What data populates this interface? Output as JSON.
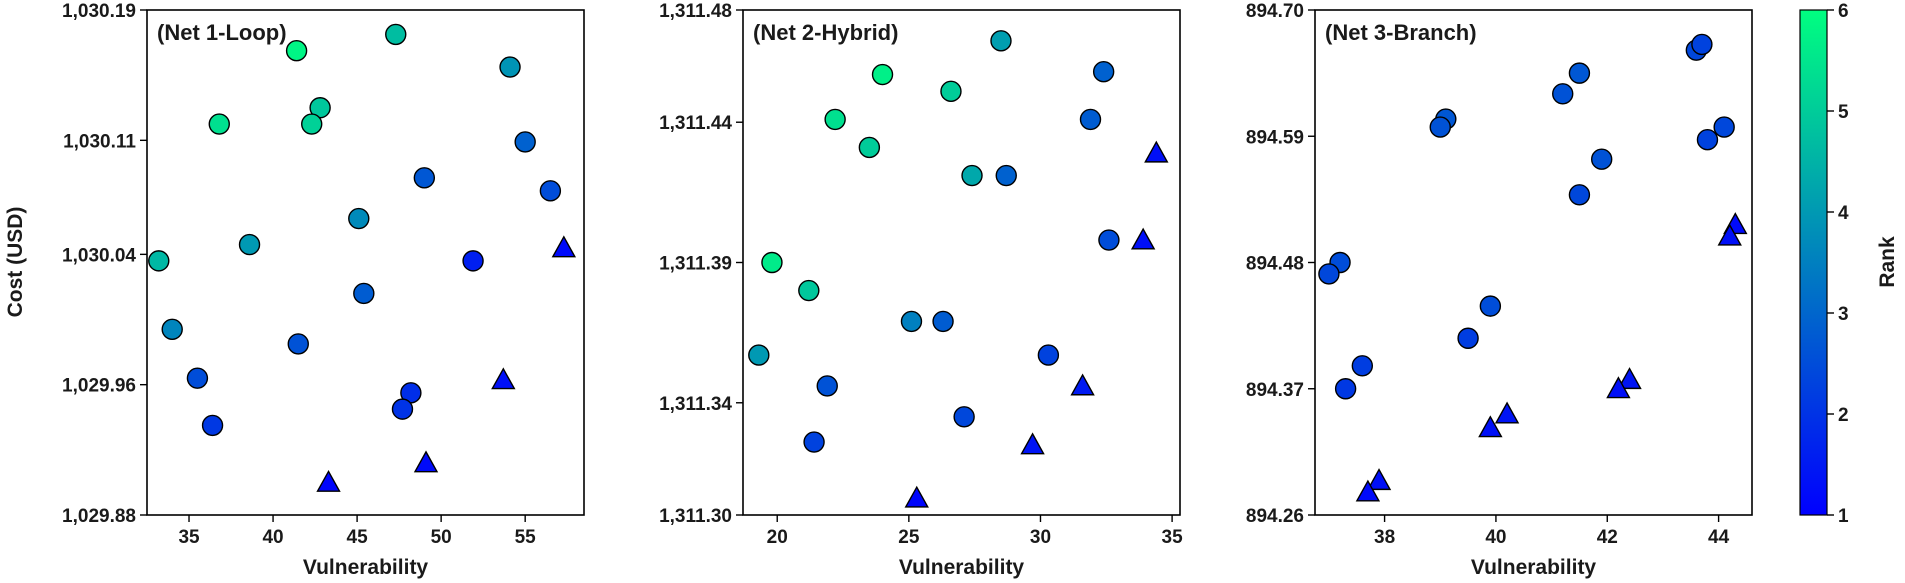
{
  "chart_data": {
    "type": "scatter",
    "color_encoding": "Rank",
    "colorbar": {
      "label": "Rank",
      "range": [
        1,
        6
      ],
      "ticks": [
        "1",
        "2",
        "3",
        "4",
        "5",
        "6"
      ],
      "colors": [
        "#0000ff",
        "#00ff80"
      ]
    },
    "marker_shapes": {
      "circle": "circle",
      "triangle": "triangle"
    },
    "panels": [
      {
        "title": "(Net 1-Loop)",
        "xlabel": "Vulnerability",
        "ylabel": "Cost (USD)",
        "xlim": [
          32.5,
          58.5
        ],
        "ylim": [
          1029.88,
          1030.19
        ],
        "xticks": [
          35,
          40,
          45,
          50,
          55
        ],
        "xtick_labels": [
          "35",
          "40",
          "45",
          "50",
          "55"
        ],
        "yticks": [
          1029.88,
          1029.96,
          1030.04,
          1030.11,
          1030.19
        ],
        "ytick_labels": [
          "1,029.88",
          "1,029.96",
          "1,030.04",
          "1,030.11",
          "1,030.19"
        ],
        "points": [
          {
            "x": 41.4,
            "y": 1030.165,
            "rank": 5.8,
            "marker": "circle"
          },
          {
            "x": 47.3,
            "y": 1030.175,
            "rank": 4.7,
            "marker": "circle"
          },
          {
            "x": 36.8,
            "y": 1030.12,
            "rank": 5.4,
            "marker": "circle"
          },
          {
            "x": 42.8,
            "y": 1030.13,
            "rank": 4.9,
            "marker": "circle"
          },
          {
            "x": 42.3,
            "y": 1030.12,
            "rank": 5.1,
            "marker": "circle"
          },
          {
            "x": 54.1,
            "y": 1030.155,
            "rank": 3.9,
            "marker": "circle"
          },
          {
            "x": 55.0,
            "y": 1030.109,
            "rank": 2.9,
            "marker": "circle"
          },
          {
            "x": 49.0,
            "y": 1030.087,
            "rank": 2.7,
            "marker": "circle"
          },
          {
            "x": 56.5,
            "y": 1030.079,
            "rank": 2.5,
            "marker": "circle"
          },
          {
            "x": 45.1,
            "y": 1030.062,
            "rank": 3.7,
            "marker": "circle"
          },
          {
            "x": 33.2,
            "y": 1030.036,
            "rank": 4.6,
            "marker": "circle"
          },
          {
            "x": 38.6,
            "y": 1030.046,
            "rank": 4.0,
            "marker": "circle"
          },
          {
            "x": 51.9,
            "y": 1030.036,
            "rank": 1.6,
            "marker": "circle"
          },
          {
            "x": 45.4,
            "y": 1030.016,
            "rank": 2.8,
            "marker": "circle"
          },
          {
            "x": 34.0,
            "y": 1029.994,
            "rank": 3.6,
            "marker": "circle"
          },
          {
            "x": 41.5,
            "y": 1029.985,
            "rank": 2.6,
            "marker": "circle"
          },
          {
            "x": 35.5,
            "y": 1029.964,
            "rank": 2.5,
            "marker": "circle"
          },
          {
            "x": 36.4,
            "y": 1029.935,
            "rank": 2.1,
            "marker": "circle"
          },
          {
            "x": 48.2,
            "y": 1029.955,
            "rank": 1.9,
            "marker": "circle"
          },
          {
            "x": 47.7,
            "y": 1029.945,
            "rank": 2.0,
            "marker": "circle"
          },
          {
            "x": 57.3,
            "y": 1030.044,
            "rank": 1.2,
            "marker": "triangle"
          },
          {
            "x": 53.7,
            "y": 1029.963,
            "rank": 1.3,
            "marker": "triangle"
          },
          {
            "x": 49.1,
            "y": 1029.912,
            "rank": 1.2,
            "marker": "triangle"
          },
          {
            "x": 43.3,
            "y": 1029.9,
            "rank": 1.1,
            "marker": "triangle"
          }
        ]
      },
      {
        "title": "(Net 2-Hybrid)",
        "xlabel": "Vulnerability",
        "ylabel": "",
        "xlim": [
          18.7,
          35.3
        ],
        "ylim": [
          1311.3,
          1311.48
        ],
        "xticks": [
          20,
          25,
          30,
          35
        ],
        "xtick_labels": [
          "20",
          "25",
          "30",
          "35"
        ],
        "yticks": [
          1311.3,
          1311.34,
          1311.39,
          1311.44,
          1311.48
        ],
        "ytick_labels": [
          "1,311.30",
          "1,311.34",
          "1,311.39",
          "1,311.44",
          "1,311.48"
        ],
        "points": [
          {
            "x": 24.0,
            "y": 1311.457,
            "rank": 5.7,
            "marker": "circle"
          },
          {
            "x": 28.5,
            "y": 1311.469,
            "rank": 4.1,
            "marker": "circle"
          },
          {
            "x": 26.6,
            "y": 1311.451,
            "rank": 5.0,
            "marker": "circle"
          },
          {
            "x": 22.2,
            "y": 1311.441,
            "rank": 5.4,
            "marker": "circle"
          },
          {
            "x": 32.4,
            "y": 1311.458,
            "rank": 2.9,
            "marker": "circle"
          },
          {
            "x": 31.9,
            "y": 1311.441,
            "rank": 2.8,
            "marker": "circle"
          },
          {
            "x": 23.5,
            "y": 1311.431,
            "rank": 5.0,
            "marker": "circle"
          },
          {
            "x": 27.4,
            "y": 1311.421,
            "rank": 4.3,
            "marker": "circle"
          },
          {
            "x": 28.7,
            "y": 1311.421,
            "rank": 2.9,
            "marker": "circle"
          },
          {
            "x": 32.6,
            "y": 1311.398,
            "rank": 2.5,
            "marker": "circle"
          },
          {
            "x": 19.8,
            "y": 1311.39,
            "rank": 5.6,
            "marker": "circle"
          },
          {
            "x": 21.2,
            "y": 1311.38,
            "rank": 4.9,
            "marker": "circle"
          },
          {
            "x": 25.1,
            "y": 1311.369,
            "rank": 3.5,
            "marker": "circle"
          },
          {
            "x": 26.3,
            "y": 1311.369,
            "rank": 2.8,
            "marker": "circle"
          },
          {
            "x": 19.3,
            "y": 1311.357,
            "rank": 4.0,
            "marker": "circle"
          },
          {
            "x": 30.3,
            "y": 1311.357,
            "rank": 2.3,
            "marker": "circle"
          },
          {
            "x": 21.9,
            "y": 1311.346,
            "rank": 2.6,
            "marker": "circle"
          },
          {
            "x": 27.1,
            "y": 1311.335,
            "rank": 2.4,
            "marker": "circle"
          },
          {
            "x": 21.4,
            "y": 1311.326,
            "rank": 2.3,
            "marker": "circle"
          },
          {
            "x": 34.4,
            "y": 1311.429,
            "rank": 1.3,
            "marker": "triangle"
          },
          {
            "x": 33.9,
            "y": 1311.398,
            "rank": 1.3,
            "marker": "triangle"
          },
          {
            "x": 31.6,
            "y": 1311.346,
            "rank": 1.5,
            "marker": "triangle"
          },
          {
            "x": 29.7,
            "y": 1311.325,
            "rank": 1.4,
            "marker": "triangle"
          },
          {
            "x": 25.3,
            "y": 1311.306,
            "rank": 1.1,
            "marker": "triangle"
          }
        ]
      },
      {
        "title": "(Net 3-Branch)",
        "xlabel": "Vulnerability",
        "ylabel": "",
        "xlim": [
          36.75,
          44.6
        ],
        "ylim": [
          894.26,
          894.7
        ],
        "xticks": [
          38,
          40,
          42,
          44
        ],
        "xtick_labels": [
          "38",
          "40",
          "42",
          "44"
        ],
        "yticks": [
          894.26,
          894.37,
          894.48,
          894.59,
          894.7
        ],
        "ytick_labels": [
          "894.26",
          "894.37",
          "894.48",
          "894.59",
          "894.70"
        ],
        "points": [
          {
            "x": 43.6,
            "y": 894.665,
            "rank": 2.4,
            "marker": "circle"
          },
          {
            "x": 43.7,
            "y": 894.67,
            "rank": 2.3,
            "marker": "circle"
          },
          {
            "x": 41.5,
            "y": 894.645,
            "rank": 2.7,
            "marker": "circle"
          },
          {
            "x": 41.2,
            "y": 894.627,
            "rank": 2.6,
            "marker": "circle"
          },
          {
            "x": 39.1,
            "y": 894.605,
            "rank": 2.7,
            "marker": "circle"
          },
          {
            "x": 39.0,
            "y": 894.598,
            "rank": 2.6,
            "marker": "circle"
          },
          {
            "x": 44.1,
            "y": 894.598,
            "rank": 2.4,
            "marker": "circle"
          },
          {
            "x": 43.8,
            "y": 894.587,
            "rank": 2.3,
            "marker": "circle"
          },
          {
            "x": 41.9,
            "y": 894.57,
            "rank": 2.6,
            "marker": "circle"
          },
          {
            "x": 41.5,
            "y": 894.539,
            "rank": 2.4,
            "marker": "circle"
          },
          {
            "x": 37.2,
            "y": 894.48,
            "rank": 2.5,
            "marker": "circle"
          },
          {
            "x": 37.0,
            "y": 894.47,
            "rank": 2.4,
            "marker": "circle"
          },
          {
            "x": 39.9,
            "y": 894.442,
            "rank": 2.5,
            "marker": "circle"
          },
          {
            "x": 39.5,
            "y": 894.414,
            "rank": 2.2,
            "marker": "circle"
          },
          {
            "x": 37.6,
            "y": 894.39,
            "rank": 2.2,
            "marker": "circle"
          },
          {
            "x": 37.3,
            "y": 894.37,
            "rank": 2.1,
            "marker": "circle"
          },
          {
            "x": 44.3,
            "y": 894.513,
            "rank": 1.2,
            "marker": "triangle"
          },
          {
            "x": 44.2,
            "y": 894.503,
            "rank": 1.3,
            "marker": "triangle"
          },
          {
            "x": 42.4,
            "y": 894.378,
            "rank": 1.4,
            "marker": "triangle"
          },
          {
            "x": 42.2,
            "y": 894.37,
            "rank": 1.3,
            "marker": "triangle"
          },
          {
            "x": 40.2,
            "y": 894.348,
            "rank": 1.4,
            "marker": "triangle"
          },
          {
            "x": 39.9,
            "y": 894.336,
            "rank": 1.3,
            "marker": "triangle"
          },
          {
            "x": 37.9,
            "y": 894.29,
            "rank": 1.3,
            "marker": "triangle"
          },
          {
            "x": 37.7,
            "y": 894.28,
            "rank": 1.2,
            "marker": "triangle"
          }
        ]
      }
    ]
  }
}
